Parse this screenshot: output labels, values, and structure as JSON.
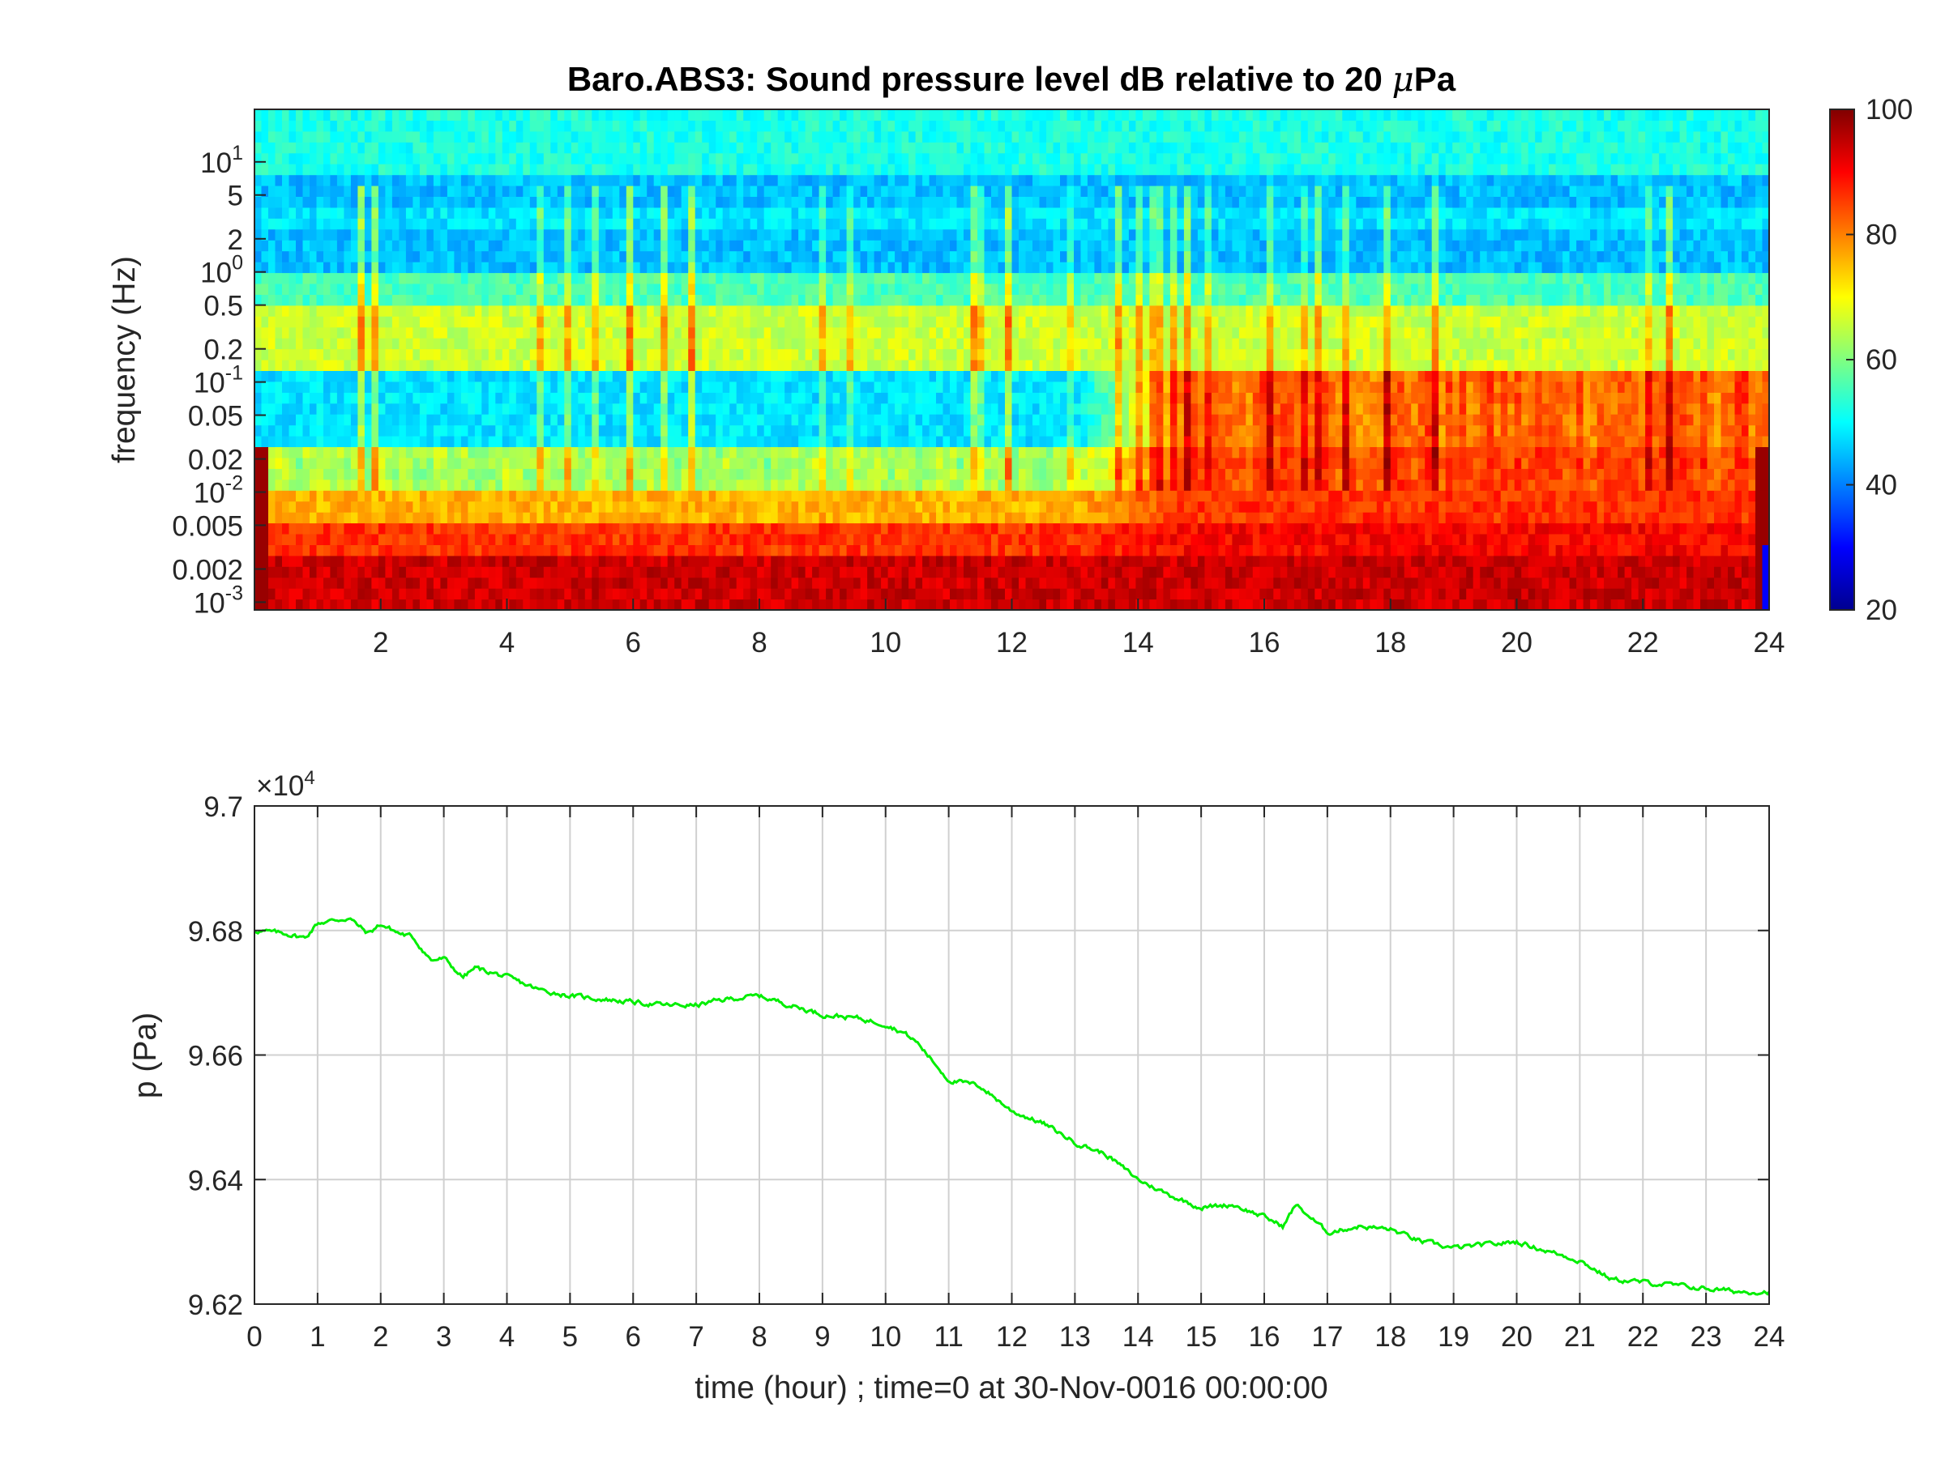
{
  "colors": {
    "trace": "#00ee00",
    "axis": "#262626",
    "grid": "#d0d0d0",
    "colormap": "jet"
  },
  "chart_data": [
    {
      "type": "heatmap",
      "title_main": "Baro.ABS3: Sound pressure level dB relative to 20 ",
      "title_mu": "μ",
      "title_tail": "Pa",
      "ylabel": "frequency (Hz)",
      "xlabel": "",
      "xlim": [
        0,
        24
      ],
      "x_ticks": [
        "2",
        "4",
        "6",
        "8",
        "10",
        "12",
        "14",
        "16",
        "18",
        "20",
        "22",
        "24"
      ],
      "y_scale": "log",
      "ylim": [
        0.00085,
        30
      ],
      "y_ticks": [
        {
          "value": 10,
          "base": "10",
          "exp": "1"
        },
        {
          "value": 5,
          "label": "5"
        },
        {
          "value": 2,
          "label": "2"
        },
        {
          "value": 1,
          "base": "10",
          "exp": "0"
        },
        {
          "value": 0.5,
          "label": "0.5"
        },
        {
          "value": 0.2,
          "label": "0.2"
        },
        {
          "value": 0.1,
          "base": "10",
          "exp": "-1"
        },
        {
          "value": 0.05,
          "label": "0.05"
        },
        {
          "value": 0.02,
          "label": "0.02"
        },
        {
          "value": 0.01,
          "base": "10",
          "exp": "-2"
        },
        {
          "value": 0.005,
          "label": "0.005"
        },
        {
          "value": 0.002,
          "label": "0.002"
        },
        {
          "value": 0.001,
          "base": "10",
          "exp": "-3"
        }
      ],
      "colorbar": {
        "min": 20,
        "max": 100,
        "ticks": [
          "20",
          "40",
          "60",
          "80",
          "100"
        ]
      },
      "grid": false,
      "description_of_values": "SPL around 50 dB above 1 Hz, ~65 dB band near 0.2 Hz, 45-55 dB between 0.02 and 0.15 Hz before hour 13 rising to 80-90 dB after hour 14, 85-100 dB below 0.005 Hz"
    },
    {
      "type": "line",
      "ylabel": "p (Pa)",
      "xlabel": "time (hour) ; time=0 at 30-Nov-0016 00:00:00",
      "multiplier_base": "×10",
      "multiplier_exp": "4",
      "xlim": [
        0,
        24
      ],
      "ylim": [
        96200,
        97000
      ],
      "x_ticks": [
        "0",
        "1",
        "2",
        "3",
        "4",
        "5",
        "6",
        "7",
        "8",
        "9",
        "10",
        "11",
        "12",
        "13",
        "14",
        "15",
        "16",
        "17",
        "18",
        "19",
        "20",
        "21",
        "22",
        "23",
        "24"
      ],
      "y_ticks": [
        {
          "value": 96200,
          "label": "9.62"
        },
        {
          "value": 96400,
          "label": "9.64"
        },
        {
          "value": 96600,
          "label": "9.66"
        },
        {
          "value": 96800,
          "label": "9.68"
        },
        {
          "value": 97000,
          "label": "9.7"
        }
      ],
      "grid": true,
      "series": [
        {
          "x": [
            0,
            0.5,
            0.8,
            1,
            1.5,
            1.8,
            2,
            2.3,
            2.5,
            2.8,
            3,
            3.3,
            3.5,
            4,
            4.5,
            5,
            5.5,
            6,
            6.5,
            7,
            7.5,
            8,
            8.5,
            9,
            9.5,
            10,
            10.3,
            10.5,
            11,
            11.5,
            12,
            12.5,
            13,
            13.5,
            14,
            14.5,
            15,
            15.5,
            16,
            16.3,
            16.5,
            17,
            17.5,
            18,
            18.5,
            19,
            19.5,
            20,
            20.5,
            21,
            21.5,
            22,
            22.5,
            23,
            23.5,
            24
          ],
          "y": [
            96800,
            96795,
            96788,
            96812,
            96820,
            96795,
            96810,
            96795,
            96790,
            96752,
            96755,
            96725,
            96740,
            96725,
            96705,
            96695,
            96690,
            96685,
            96680,
            96680,
            96690,
            96695,
            96680,
            96665,
            96660,
            96650,
            96635,
            96620,
            96560,
            96550,
            96510,
            96490,
            96460,
            96440,
            96400,
            96375,
            96355,
            96360,
            96340,
            96325,
            96360,
            96315,
            96325,
            96320,
            96300,
            96290,
            96295,
            96300,
            96285,
            96270,
            96240,
            96235,
            96230,
            96225,
            96220,
            96220
          ]
        }
      ]
    }
  ]
}
